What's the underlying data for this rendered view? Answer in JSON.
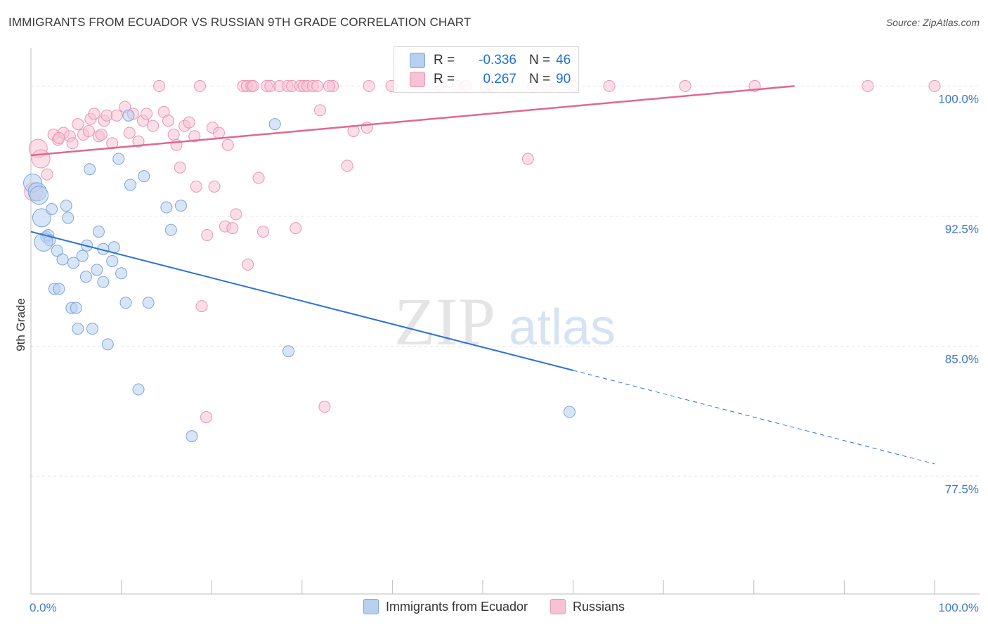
{
  "title": "IMMIGRANTS FROM ECUADOR VS RUSSIAN 9TH GRADE CORRELATION CHART",
  "source": "Source: ZipAtlas.com",
  "watermark": {
    "zip": "ZIP",
    "atlas": "atlas"
  },
  "colors": {
    "blue_fill": "#b8d0f0",
    "blue_stroke": "#7aa6dc",
    "blue_line": "#2a72d5",
    "pink_fill": "#f7c3d4",
    "pink_stroke": "#e895b2",
    "pink_line": "#e0688f",
    "axis_text": "#3f78c8",
    "grid": "#e2e2e2"
  },
  "stats": [
    {
      "r_label": "R =",
      "r_value": "-0.336",
      "n_label": "N =",
      "n_value": "46"
    },
    {
      "r_label": "R =",
      "r_value": "0.267",
      "n_label": "N =",
      "n_value": "90"
    }
  ],
  "legend": [
    {
      "label": "Immigrants from Ecuador"
    },
    {
      "label": "Russians"
    }
  ],
  "chart_data": {
    "type": "scatter",
    "title": "IMMIGRANTS FROM ECUADOR VS RUSSIAN 9TH GRADE CORRELATION CHART",
    "xlabel": "",
    "ylabel": "9th Grade",
    "xlim": [
      0,
      100
    ],
    "ylim": [
      70.7,
      101.8
    ],
    "x_tick_labels": [
      "0.0%",
      "100.0%"
    ],
    "y_ticks": [
      100.0,
      92.5,
      85.0,
      77.5
    ],
    "y_tick_labels": [
      "100.0%",
      "92.5%",
      "85.0%",
      "77.5%"
    ],
    "grid": true,
    "legend_position": "bottom",
    "series": [
      {
        "name": "Immigrants from Ecuador",
        "color": "blue",
        "points": [
          [
            0.2,
            94.4
          ],
          [
            0.7,
            93.9
          ],
          [
            1.2,
            92.4
          ],
          [
            2.3,
            92.9
          ],
          [
            3.9,
            93.1
          ],
          [
            4.1,
            92.4
          ],
          [
            1.7,
            91.3
          ],
          [
            1.9,
            91.4
          ],
          [
            2.1,
            91.1
          ],
          [
            2.9,
            90.5
          ],
          [
            3.5,
            90.0
          ],
          [
            4.7,
            89.8
          ],
          [
            5.7,
            90.2
          ],
          [
            6.2,
            90.8
          ],
          [
            7.5,
            91.6
          ],
          [
            8.0,
            90.6
          ],
          [
            9.2,
            90.7
          ],
          [
            9.0,
            89.9
          ],
          [
            7.3,
            89.4
          ],
          [
            10.0,
            89.2
          ],
          [
            8.0,
            88.7
          ],
          [
            6.1,
            89.0
          ],
          [
            2.6,
            88.3
          ],
          [
            3.1,
            88.3
          ],
          [
            4.5,
            87.2
          ],
          [
            5.0,
            87.2
          ],
          [
            10.5,
            87.5
          ],
          [
            13.0,
            87.5
          ],
          [
            5.2,
            86.0
          ],
          [
            6.8,
            86.0
          ],
          [
            8.5,
            85.1
          ],
          [
            9.7,
            95.8
          ],
          [
            11.0,
            94.3
          ],
          [
            12.5,
            94.8
          ],
          [
            15.0,
            93.0
          ],
          [
            16.6,
            93.1
          ],
          [
            15.5,
            91.7
          ],
          [
            6.5,
            95.2
          ],
          [
            10.8,
            98.3
          ],
          [
            27.0,
            97.8
          ],
          [
            28.5,
            84.7
          ],
          [
            11.9,
            82.5
          ],
          [
            17.8,
            79.8
          ],
          [
            59.6,
            81.2
          ],
          [
            0.9,
            93.7
          ],
          [
            1.4,
            91.0
          ]
        ]
      },
      {
        "name": "Russians",
        "color": "pink",
        "points": [
          [
            0.8,
            96.4
          ],
          [
            1.1,
            95.8
          ],
          [
            0.3,
            93.9
          ],
          [
            1.8,
            94.9
          ],
          [
            2.5,
            97.2
          ],
          [
            3.0,
            96.9
          ],
          [
            3.6,
            97.3
          ],
          [
            4.3,
            97.1
          ],
          [
            4.6,
            96.7
          ],
          [
            5.2,
            97.8
          ],
          [
            5.8,
            97.2
          ],
          [
            6.4,
            97.4
          ],
          [
            6.6,
            98.1
          ],
          [
            7.0,
            98.4
          ],
          [
            7.5,
            97.1
          ],
          [
            8.1,
            98.0
          ],
          [
            8.4,
            98.3
          ],
          [
            9.0,
            96.7
          ],
          [
            9.5,
            98.3
          ],
          [
            10.4,
            98.8
          ],
          [
            10.9,
            97.3
          ],
          [
            11.3,
            98.4
          ],
          [
            11.9,
            96.8
          ],
          [
            12.4,
            98.0
          ],
          [
            12.8,
            98.4
          ],
          [
            13.5,
            97.7
          ],
          [
            14.2,
            100.0
          ],
          [
            14.7,
            98.5
          ],
          [
            15.2,
            98.0
          ],
          [
            15.8,
            97.2
          ],
          [
            16.1,
            96.6
          ],
          [
            16.5,
            95.3
          ],
          [
            17.0,
            97.7
          ],
          [
            17.5,
            97.9
          ],
          [
            18.1,
            97.1
          ],
          [
            18.3,
            94.2
          ],
          [
            18.7,
            100.0
          ],
          [
            19.5,
            91.4
          ],
          [
            20.1,
            97.6
          ],
          [
            20.3,
            94.2
          ],
          [
            20.8,
            97.3
          ],
          [
            21.5,
            91.9
          ],
          [
            21.8,
            96.6
          ],
          [
            22.3,
            91.8
          ],
          [
            22.7,
            92.6
          ],
          [
            23.5,
            100.0
          ],
          [
            23.9,
            100.0
          ],
          [
            24.4,
            100.0
          ],
          [
            24.6,
            100.0
          ],
          [
            25.2,
            94.7
          ],
          [
            25.7,
            91.6
          ],
          [
            26.1,
            100.0
          ],
          [
            26.5,
            100.0
          ],
          [
            27.5,
            100.0
          ],
          [
            28.4,
            100.0
          ],
          [
            28.9,
            100.0
          ],
          [
            29.3,
            91.8
          ],
          [
            29.8,
            100.0
          ],
          [
            30.2,
            100.0
          ],
          [
            30.6,
            100.0
          ],
          [
            31.2,
            100.0
          ],
          [
            31.7,
            100.0
          ],
          [
            32.0,
            98.6
          ],
          [
            33.4,
            100.0
          ],
          [
            35.0,
            95.4
          ],
          [
            35.7,
            97.4
          ],
          [
            37.2,
            97.6
          ],
          [
            37.4,
            100.0
          ],
          [
            39.9,
            100.0
          ],
          [
            45.1,
            100.0
          ],
          [
            47.2,
            100.0
          ],
          [
            48.1,
            100.0
          ],
          [
            50.3,
            100.0
          ],
          [
            55.6,
            100.0
          ],
          [
            57.2,
            100.0
          ],
          [
            60.0,
            100.0
          ],
          [
            64.0,
            100.0
          ],
          [
            72.4,
            100.0
          ],
          [
            80.1,
            100.0
          ],
          [
            92.6,
            100.0
          ],
          [
            100.0,
            100.0
          ],
          [
            33.0,
            100.0
          ],
          [
            51.0,
            100.0
          ],
          [
            24.0,
            89.7
          ],
          [
            18.9,
            87.3
          ],
          [
            32.5,
            81.5
          ],
          [
            19.4,
            80.9
          ],
          [
            7.8,
            97.2
          ],
          [
            3.1,
            97.0
          ],
          [
            55.0,
            95.8
          ]
        ]
      }
    ],
    "trendlines": [
      {
        "series": "Immigrants from Ecuador",
        "x0": 0,
        "y0": 91.6,
        "x_solid_end": 60,
        "y_solid_end": 83.6,
        "x1": 100,
        "y1": 78.2
      },
      {
        "series": "Russians",
        "x0": 0,
        "y0": 96.0,
        "x1": 84.5,
        "y1": 100.0
      }
    ]
  }
}
